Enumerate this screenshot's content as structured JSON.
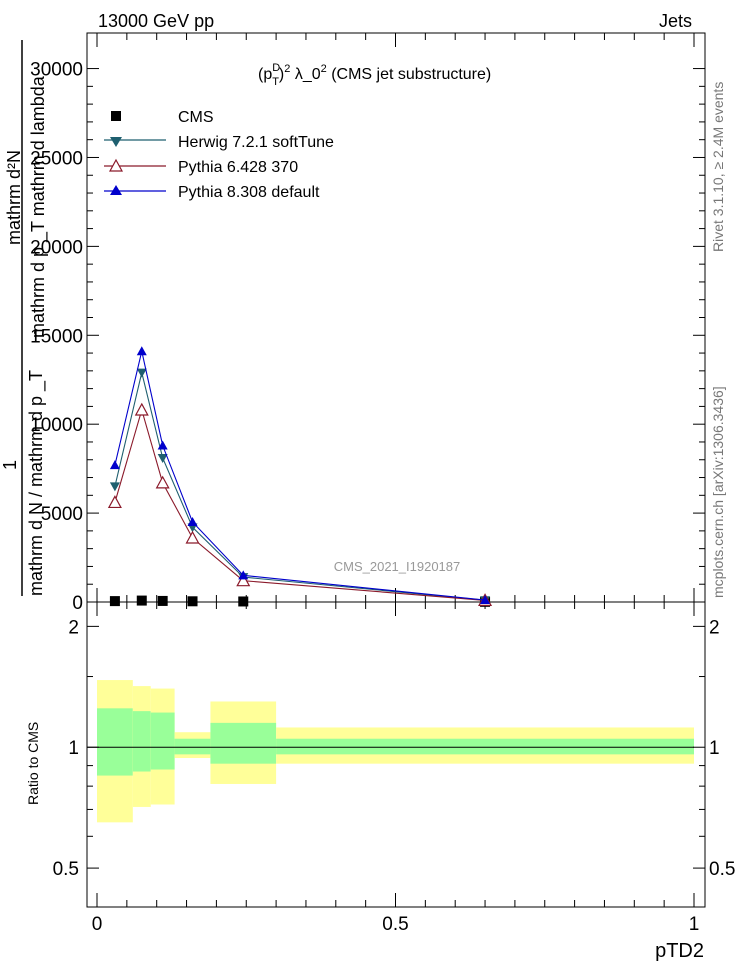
{
  "header": {
    "left": "13000 GeV pp",
    "right": "Jets"
  },
  "side_labels": {
    "rivet": "Rivet 3.1.10, ≥ 2.4M events",
    "mcplots": "mcplots.cern.ch [arXiv:1306.3436]"
  },
  "main_plot": {
    "title_main": "(p",
    "title_sup_D": "D",
    "title_sub_T": "T",
    "title_sup_2": "2",
    "title_rest": " λ_0",
    "title_sup_2b": "2",
    "title_tail": " (CMS jet substructure)",
    "watermark": "CMS_2021_I1920187",
    "ylabel_top": "mathrm d²N",
    "ylabel_mid": "mathrm d p _T mathrm d lambda",
    "ylabel_one": "1",
    "ylabel_bottom": "mathrm d N / mathrm d p _T",
    "yticks": [
      "0",
      "5000",
      "10000",
      "15000",
      "20000",
      "25000",
      "30000"
    ],
    "yticks_shown": [
      "0",
      "5000",
      "10000",
      "15000",
      "20000",
      "25000",
      "30000"
    ]
  },
  "ratio_plot": {
    "ylabel": "Ratio to CMS",
    "yticks": [
      "0.5",
      "1",
      "2"
    ]
  },
  "xaxis": {
    "label": "pTD2",
    "ticks": [
      "0",
      "0.5",
      "1"
    ]
  },
  "legend": {
    "cms": "CMS",
    "herwig": "Herwig 7.2.1 softTune",
    "pythia6": "Pythia 6.428 370",
    "pythia8": "Pythia 8.308 default"
  },
  "colors": {
    "cms": "#000000",
    "herwig": "#1f5f6f",
    "pythia6": "#8b1a2b",
    "pythia8": "#0000cc",
    "band_outer": "#ffff99",
    "band_inner": "#99ff99"
  },
  "chart_data": {
    "type": "line",
    "xlim": [
      0,
      1
    ],
    "ylim": [
      0,
      32000
    ],
    "ratio_ylim": [
      0.4,
      2.3
    ],
    "ratio_scale": "log",
    "series": [
      {
        "name": "CMS",
        "marker": "square",
        "x": [
          0.03,
          0.075,
          0.11,
          0.16,
          0.245,
          0.65
        ],
        "y": [
          50,
          80,
          60,
          40,
          30,
          10
        ]
      },
      {
        "name": "Herwig 7.2.1 softTune",
        "marker": "triangle-down",
        "x": [
          0.03,
          0.075,
          0.11,
          0.16,
          0.245,
          0.65
        ],
        "y": [
          6500,
          12900,
          8100,
          4200,
          1400,
          100
        ]
      },
      {
        "name": "Pythia 6.428 370",
        "marker": "triangle-up-open",
        "x": [
          0.03,
          0.075,
          0.11,
          0.16,
          0.245,
          0.65
        ],
        "y": [
          5600,
          10800,
          6700,
          3600,
          1200,
          90
        ]
      },
      {
        "name": "Pythia 8.308 default",
        "marker": "triangle-up",
        "x": [
          0.03,
          0.075,
          0.11,
          0.16,
          0.245,
          0.65
        ],
        "y": [
          7700,
          14100,
          8800,
          4500,
          1500,
          110
        ]
      }
    ],
    "ratio_bands": [
      {
        "x0": 0.0,
        "x1": 0.06,
        "outer": [
          0.65,
          1.47
        ],
        "inner": [
          0.85,
          1.25
        ]
      },
      {
        "x0": 0.06,
        "x1": 0.09,
        "outer": [
          0.71,
          1.42
        ],
        "inner": [
          0.87,
          1.23
        ]
      },
      {
        "x0": 0.09,
        "x1": 0.13,
        "outer": [
          0.72,
          1.4
        ],
        "inner": [
          0.88,
          1.22
        ]
      },
      {
        "x0": 0.13,
        "x1": 0.19,
        "outer": [
          0.94,
          1.09
        ],
        "inner": [
          0.96,
          1.05
        ]
      },
      {
        "x0": 0.19,
        "x1": 0.3,
        "outer": [
          0.81,
          1.3
        ],
        "inner": [
          0.91,
          1.15
        ]
      },
      {
        "x0": 0.3,
        "x1": 1.0,
        "outer": [
          0.91,
          1.12
        ],
        "inner": [
          0.96,
          1.05
        ]
      }
    ]
  }
}
